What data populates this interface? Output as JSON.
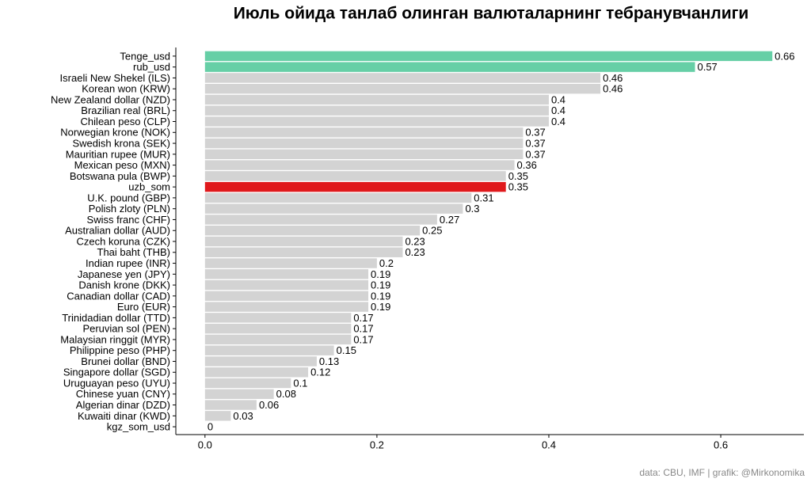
{
  "chart_data": {
    "type": "barh",
    "title": "Июль ойида танлаб олинган валюталарнинг тебранувчанлиги",
    "caption": "data: CBU, IMF | grafik: @Mirkonomika",
    "categories": [
      "Tenge_usd",
      "rub_usd",
      "Israeli New Shekel (ILS)",
      "Korean won (KRW)",
      "New Zealand dollar (NZD)",
      "Brazilian real (BRL)",
      "Chilean peso (CLP)",
      "Norwegian krone (NOK)",
      "Swedish krona (SEK)",
      "Mauritian rupee (MUR)",
      "Mexican peso (MXN)",
      "Botswana pula (BWP)",
      "uzb_som",
      "U.K. pound (GBP)",
      "Polish zloty (PLN)",
      "Swiss franc (CHF)",
      "Australian dollar (AUD)",
      "Czech koruna (CZK)",
      "Thai baht (THB)",
      "Indian rupee (INR)",
      "Japanese yen (JPY)",
      "Danish krone (DKK)",
      "Canadian dollar (CAD)",
      "Euro (EUR)",
      "Trinidadian dollar (TTD)",
      "Peruvian sol (PEN)",
      "Malaysian ringgit (MYR)",
      "Philippine peso (PHP)",
      "Brunei dollar (BND)",
      "Singapore dollar (SGD)",
      "Uruguayan peso (UYU)",
      "Chinese yuan (CNY)",
      "Algerian dinar (DZD)",
      "Kuwaiti dinar (KWD)",
      "kgz_som_usd"
    ],
    "values": [
      0.66,
      0.57,
      0.46,
      0.46,
      0.4,
      0.4,
      0.4,
      0.37,
      0.37,
      0.37,
      0.36,
      0.35,
      0.35,
      0.31,
      0.3,
      0.27,
      0.25,
      0.23,
      0.23,
      0.2,
      0.19,
      0.19,
      0.19,
      0.19,
      0.17,
      0.17,
      0.17,
      0.15,
      0.13,
      0.12,
      0.1,
      0.08,
      0.06,
      0.03,
      0
    ],
    "colors": [
      "#66cfa6",
      "#66cfa6",
      "#d3d3d3",
      "#d3d3d3",
      "#d3d3d3",
      "#d3d3d3",
      "#d3d3d3",
      "#d3d3d3",
      "#d3d3d3",
      "#d3d3d3",
      "#d3d3d3",
      "#d3d3d3",
      "#e0191c",
      "#d3d3d3",
      "#d3d3d3",
      "#d3d3d3",
      "#d3d3d3",
      "#d3d3d3",
      "#d3d3d3",
      "#d3d3d3",
      "#d3d3d3",
      "#d3d3d3",
      "#d3d3d3",
      "#d3d3d3",
      "#d3d3d3",
      "#d3d3d3",
      "#d3d3d3",
      "#d3d3d3",
      "#d3d3d3",
      "#d3d3d3",
      "#d3d3d3",
      "#d3d3d3",
      "#d3d3d3",
      "#d3d3d3",
      "#d3d3d3"
    ],
    "xlim": [
      -0.033,
      0.693
    ],
    "xticks": [
      {
        "value": 0,
        "label": "0.0"
      },
      0.2,
      0.4,
      0.6
    ],
    "grid": false
  }
}
